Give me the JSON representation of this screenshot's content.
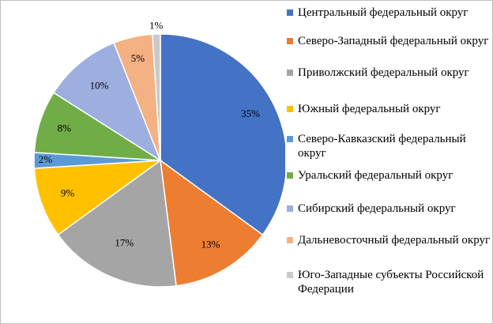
{
  "chart_data": {
    "type": "pie",
    "title": "",
    "categories": [
      "Центральный федеральный округ",
      "Северо-Западный федеральный округ",
      "Приволжский федеральный округ",
      "Южный федеральный округ",
      "Северо-Кавказский федеральный округ",
      "Уральский федеральный округ",
      "Сибирский федеральный округ",
      "Дальневосточный федеральный округ",
      "Юго-Западные субъекты Российской Федерации"
    ],
    "values": [
      35,
      13,
      17,
      9,
      2,
      8,
      10,
      5,
      1
    ],
    "data_labels": [
      "35%",
      "13%",
      "17%",
      "9%",
      "2%",
      "8%",
      "10%",
      "5%",
      "1%"
    ],
    "colors": [
      "#4472c4",
      "#ed7d31",
      "#a5a5a5",
      "#ffc000",
      "#5b9bd5",
      "#70ad47",
      "#9dafdf",
      "#f4b183",
      "#c9c9c9"
    ],
    "legend_position": "right"
  },
  "legend": {
    "items": [
      {
        "label": "Центральный федеральный округ"
      },
      {
        "label": "Северо-Западный федеральный округ"
      },
      {
        "label": "Приволжский федеральный округ"
      },
      {
        "label": "Южный федеральный округ"
      },
      {
        "label": "Северо-Кавказский федеральный округ"
      },
      {
        "label": "Уральский федеральный округ"
      },
      {
        "label": "Сибирский федеральный округ"
      },
      {
        "label": "Дальневосточный федеральный округ"
      },
      {
        "label": "Юго-Западные субъекты Российской Федерации"
      }
    ]
  }
}
